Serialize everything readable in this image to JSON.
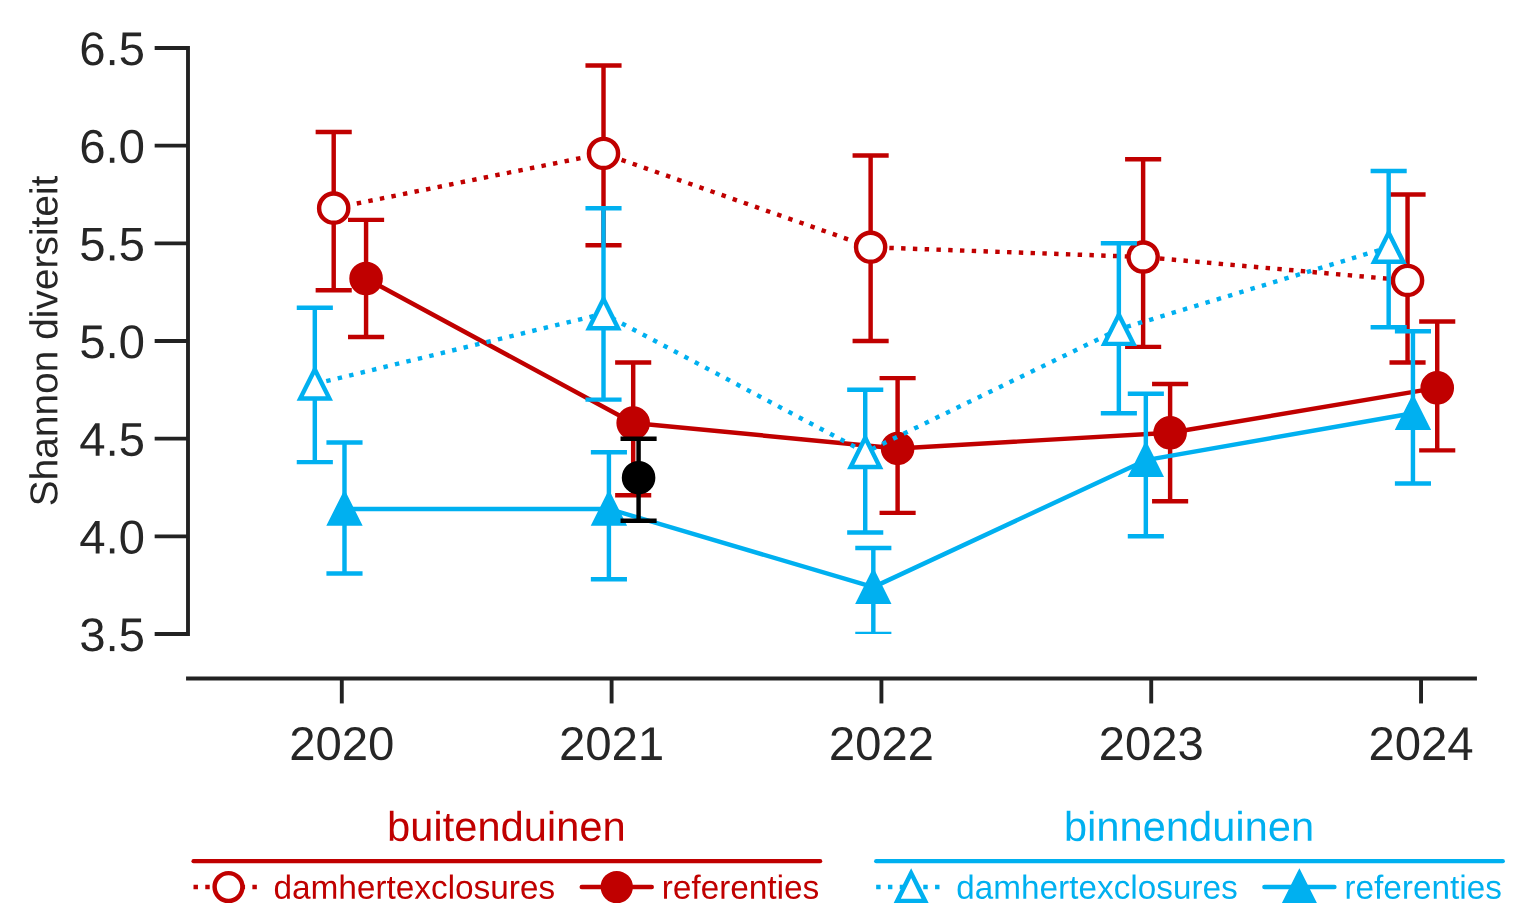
{
  "chart_data": {
    "type": "line",
    "ylabel": "Shannon diversiteit",
    "xlim": [
      2019.43,
      2024.2
    ],
    "xticks": [
      2020,
      2021,
      2022,
      2023,
      2024
    ],
    "ylim": [
      3.5,
      6.5
    ],
    "yticks": [
      3.5,
      {
        "value": 4,
        "label": "4.0"
      },
      4.5,
      {
        "value": 5,
        "label": "5.0"
      },
      5.5,
      {
        "value": 6,
        "label": "6.0"
      },
      6.5
    ],
    "legend": "bottom",
    "annotations": [
      "buitenduinen",
      "binnenduinen"
    ],
    "series": [
      {
        "name": "damhertexclosures",
        "color": "#c00000",
        "marker": "circle",
        "line_style": "dotted",
        "x": [
          2019.97,
          2020.97,
          2021.96,
          2022.97,
          2023.95
        ],
        "values": [
          5.68,
          5.96,
          5.48,
          5.43,
          5.31
        ],
        "errors": [
          [
            5.26,
            6.07
          ],
          [
            5.49,
            6.41
          ],
          [
            5.0,
            5.95
          ],
          [
            4.97,
            5.93
          ],
          [
            4.89,
            5.75
          ]
        ]
      },
      {
        "name": "referenties",
        "color": "#c00000",
        "marker": "circle",
        "line_style": "solid",
        "x": [
          2020.09,
          2021.08,
          2022.06,
          2023.07,
          2024.06
        ],
        "values": [
          5.32,
          4.58,
          4.45,
          4.53,
          4.76
        ],
        "errors": [
          [
            5.02,
            5.62
          ],
          [
            4.21,
            4.89
          ],
          [
            4.12,
            4.81
          ],
          [
            4.18,
            4.78
          ],
          [
            4.44,
            5.1
          ]
        ]
      },
      {
        "name": "damhertexclosures",
        "color": "#00b0f0",
        "marker": "triangle",
        "line_style": "dotted",
        "x": [
          2019.9,
          2020.97,
          2021.94,
          2022.88,
          2023.88
        ],
        "values": [
          4.78,
          5.14,
          4.43,
          5.06,
          5.48
        ],
        "errors": [
          [
            4.38,
            5.17
          ],
          [
            4.7,
            5.68
          ],
          [
            4.02,
            4.75
          ],
          [
            4.63,
            5.5
          ],
          [
            5.07,
            5.87
          ]
        ]
      },
      {
        "name": "referenties",
        "color": "#00b0f0",
        "marker": "triangle",
        "line_style": "solid",
        "x": [
          2020.01,
          2020.99,
          2021.97,
          2022.98,
          2023.97
        ],
        "values": [
          4.14,
          4.14,
          3.74,
          4.39,
          4.63
        ],
        "errors": [
          [
            3.81,
            4.48
          ],
          [
            3.78,
            4.43
          ],
          [
            3.5,
            3.94
          ],
          [
            4.0,
            4.73
          ],
          [
            4.27,
            5.05
          ]
        ]
      },
      {
        "type": "scatter",
        "color": "#000000",
        "marker": "circle",
        "x": [
          2021.1
        ],
        "values": [
          4.3
        ],
        "errors": [
          [
            4.08,
            4.5
          ]
        ]
      }
    ]
  }
}
